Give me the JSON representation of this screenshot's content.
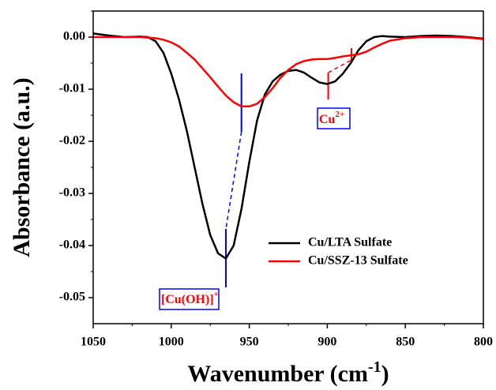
{
  "chart_data": {
    "type": "line",
    "x_label": {
      "text": "Wavenumber (cm",
      "sup": "-1",
      "after": ")"
    },
    "y_label": "Absorbance (a.u.)",
    "x": [
      1050,
      1040,
      1030,
      1020,
      1015,
      1010,
      1005,
      1000,
      995,
      990,
      985,
      980,
      975,
      970,
      965,
      960,
      955,
      950,
      945,
      940,
      935,
      930,
      925,
      920,
      915,
      910,
      905,
      900,
      895,
      890,
      885,
      880,
      875,
      870,
      865,
      860,
      850,
      840,
      830,
      820,
      810,
      800
    ],
    "series": [
      {
        "name": "Cu/LTA Sulfate",
        "color": "#000000",
        "values": [
          0.0007,
          0.0003,
          0,
          0.0001,
          0,
          -0.0008,
          -0.003,
          -0.007,
          -0.012,
          -0.018,
          -0.025,
          -0.032,
          -0.038,
          -0.0415,
          -0.0425,
          -0.04,
          -0.033,
          -0.024,
          -0.016,
          -0.011,
          -0.0085,
          -0.0072,
          -0.0065,
          -0.0063,
          -0.0068,
          -0.0078,
          -0.0087,
          -0.009,
          -0.0085,
          -0.007,
          -0.005,
          -0.0025,
          -0.0008,
          0,
          0.0002,
          0.0001,
          0,
          0.0002,
          0.0003,
          0.0002,
          0,
          -0.0003
        ]
      },
      {
        "name": "Cu/SSZ-13 Sulfate",
        "color": "#ff0000",
        "values": [
          0,
          0,
          0,
          0,
          -0.0001,
          -0.0002,
          -0.0005,
          -0.001,
          -0.0018,
          -0.003,
          -0.0043,
          -0.006,
          -0.0077,
          -0.0095,
          -0.0112,
          -0.0125,
          -0.0133,
          -0.0133,
          -0.0128,
          -0.0115,
          -0.0098,
          -0.0078,
          -0.0063,
          -0.0052,
          -0.0046,
          -0.0043,
          -0.0042,
          -0.0042,
          -0.004,
          -0.0037,
          -0.0035,
          -0.0033,
          -0.0028,
          -0.002,
          -0.0013,
          -0.0007,
          -0.0002,
          0,
          0,
          0,
          -0.0001,
          -0.0004
        ]
      }
    ],
    "xlim": [
      1050,
      800
    ],
    "xticks": [
      1050,
      1000,
      950,
      900,
      850,
      800
    ],
    "ylim": [
      -0.055,
      0.005
    ],
    "yticks": [
      {
        "value": 0,
        "label": "0.00"
      },
      {
        "value": -0.01,
        "label": "-0.01"
      },
      {
        "value": -0.02,
        "label": "-0.02"
      },
      {
        "value": -0.03,
        "label": "-0.03"
      },
      {
        "value": -0.04,
        "label": "-0.04"
      },
      {
        "value": -0.05,
        "label": "-0.05"
      }
    ],
    "legend": "lower right",
    "annotations": [
      {
        "text": "[Cu(OH)]",
        "sup": "+",
        "color": "#ff0000"
      },
      {
        "text": "Cu",
        "sup": "2+",
        "color": "#ff0000"
      }
    ]
  }
}
